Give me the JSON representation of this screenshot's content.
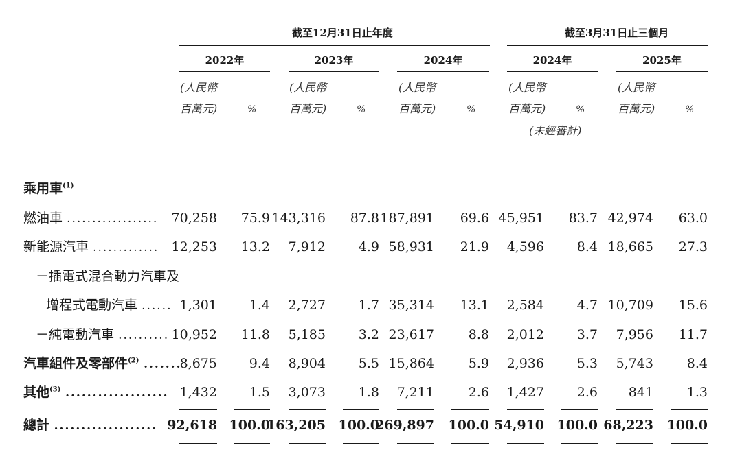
{
  "header": {
    "group_annual": "截至12月31日止年度",
    "group_quarter": "截至3月31日止三個月",
    "years": [
      "2022年",
      "2023年",
      "2024年",
      "2024年",
      "2025年"
    ],
    "unit_line1": "(人民幣",
    "unit_line2": "百萬元)",
    "percent": "%",
    "unaudited": "(未經審計)"
  },
  "section_title": "乘用車",
  "section_title_note": "(1)",
  "rows": [
    {
      "label": "燃油車",
      "note": "",
      "leader": "..................",
      "bold": false,
      "values": [
        "70,258",
        "75.9",
        "143,316",
        "87.8",
        "187,891",
        "69.6",
        "45,951",
        "83.7",
        "42,974",
        "63.0"
      ]
    },
    {
      "label": "新能源汽車",
      "note": "",
      "leader": ".............",
      "bold": false,
      "values": [
        "12,253",
        "13.2",
        "7,912",
        "4.9",
        "58,931",
        "21.9",
        "4,596",
        "8.4",
        "18,665",
        "27.3"
      ]
    },
    {
      "label": "－插電式混合動力汽車及",
      "note": "",
      "leader": "",
      "bold": false,
      "values": []
    },
    {
      "label": "增程式電動汽車",
      "note": "",
      "leader": "......",
      "bold": false,
      "values": [
        "1,301",
        "1.4",
        "2,727",
        "1.7",
        "35,314",
        "13.1",
        "2,584",
        "4.7",
        "10,709",
        "15.6"
      ]
    },
    {
      "label": "－純電動汽車",
      "note": "",
      "leader": "..........",
      "bold": false,
      "values": [
        "10,952",
        "11.8",
        "5,185",
        "3.2",
        "23,617",
        "8.8",
        "2,012",
        "3.7",
        "7,956",
        "11.7"
      ]
    },
    {
      "label": "汽車組件及零部件",
      "note": "(2)",
      "leader": ".......",
      "bold": true,
      "values": [
        "8,675",
        "9.4",
        "8,904",
        "5.5",
        "15,864",
        "5.9",
        "2,936",
        "5.3",
        "5,743",
        "8.4"
      ]
    },
    {
      "label": "其他",
      "note": "(3)",
      "leader": "...................",
      "bold": true,
      "values": [
        "1,432",
        "1.5",
        "3,073",
        "1.8",
        "7,211",
        "2.6",
        "1,427",
        "2.6",
        "841",
        "1.3"
      ]
    },
    {
      "label": "總計",
      "note": "",
      "leader": "...................",
      "bold": true,
      "values": [
        "92,618",
        "100.0",
        "163,205",
        "100.0",
        "269,897",
        "100.0",
        "54,910",
        "100.0",
        "68,223",
        "100.0"
      ]
    }
  ]
}
